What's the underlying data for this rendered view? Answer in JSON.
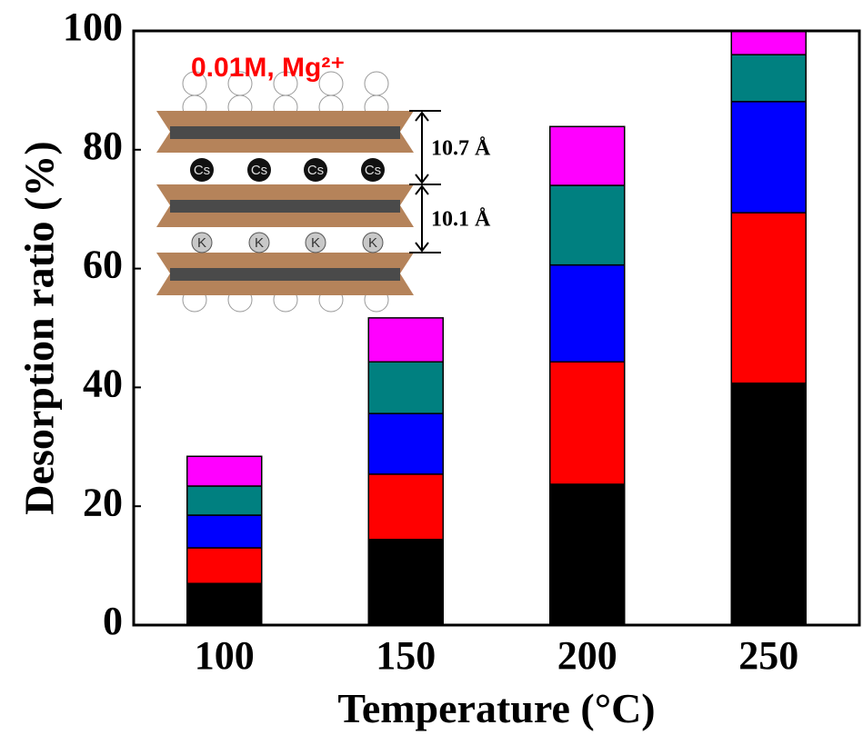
{
  "chart_data": {
    "type": "stacked_bar",
    "x_label": "Temperature (°C)",
    "y_label": "Desorption ratio (%)",
    "categories": [
      "100",
      "150",
      "200",
      "250"
    ],
    "series": [
      {
        "color": "#000000",
        "values": [
          7.0,
          14.4,
          23.7,
          40.7
        ]
      },
      {
        "color": "#ff0000",
        "values": [
          6.0,
          11.0,
          20.6,
          28.7
        ]
      },
      {
        "color": "#0000ff",
        "values": [
          5.5,
          10.2,
          16.3,
          18.7
        ]
      },
      {
        "color": "#008080",
        "values": [
          4.9,
          8.7,
          13.4,
          7.9
        ]
      },
      {
        "color": "#ff00ff",
        "values": [
          5.0,
          7.4,
          9.9,
          4.0
        ]
      }
    ],
    "ylim": [
      0,
      100
    ],
    "yticks": [
      0,
      20,
      40,
      60,
      80,
      100
    ],
    "inset": {
      "title": "0.01M, Mg²⁺",
      "spacings": [
        "10.7 Å",
        "10.1 Å"
      ],
      "upper_ions": [
        "Cs",
        "Cs",
        "Cs",
        "Cs"
      ],
      "lower_ions": [
        "K",
        "K",
        "K",
        "K"
      ]
    }
  }
}
